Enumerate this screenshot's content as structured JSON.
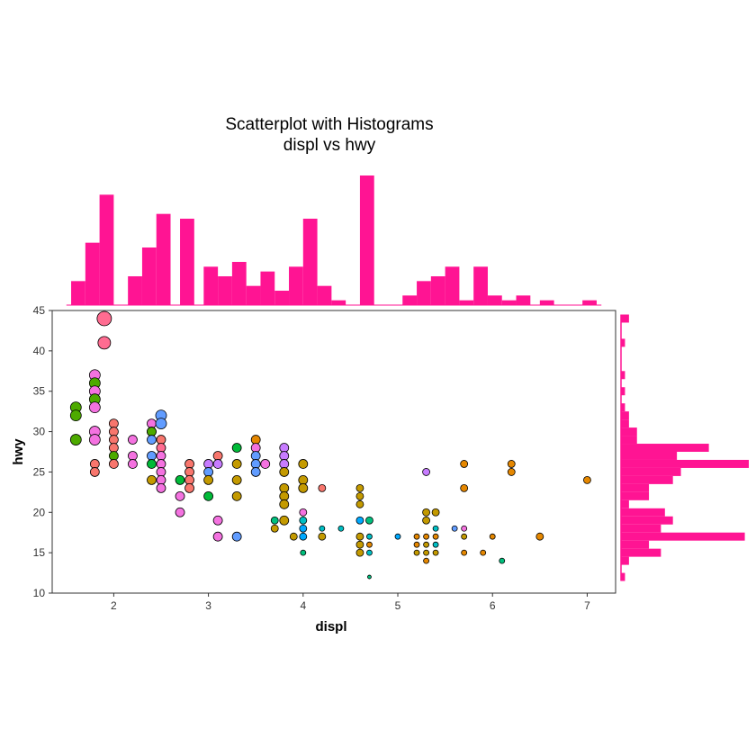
{
  "chart_data": {
    "type": "scatter",
    "title": "Scatterplot with Histograms",
    "subtitle": "displ vs hwy",
    "xlabel": "displ",
    "ylabel": "hwy",
    "xlim": [
      1.35,
      7.3
    ],
    "ylim": [
      10,
      45
    ],
    "xticks": [
      "2",
      "3",
      "4",
      "5",
      "6",
      "7"
    ],
    "yticks": [
      "10",
      "15",
      "20",
      "25",
      "30",
      "35",
      "40",
      "45"
    ],
    "marginal_color": "#FF1493",
    "point_stroke": "#000000",
    "points": [
      {
        "x": 1.6,
        "y": 33,
        "c": "#4DAA00",
        "s": 6
      },
      {
        "x": 1.6,
        "y": 32,
        "c": "#4DAA00",
        "s": 6
      },
      {
        "x": 1.6,
        "y": 29,
        "c": "#4DAA00",
        "s": 6
      },
      {
        "x": 1.8,
        "y": 37,
        "c": "#F472E0",
        "s": 6
      },
      {
        "x": 1.8,
        "y": 36,
        "c": "#4DAA00",
        "s": 6
      },
      {
        "x": 1.8,
        "y": 35,
        "c": "#F472E0",
        "s": 6
      },
      {
        "x": 1.8,
        "y": 34,
        "c": "#4DAA00",
        "s": 6
      },
      {
        "x": 1.8,
        "y": 33,
        "c": "#F472E0",
        "s": 6
      },
      {
        "x": 1.8,
        "y": 30,
        "c": "#F472E0",
        "s": 6
      },
      {
        "x": 1.8,
        "y": 29,
        "c": "#F472E0",
        "s": 6
      },
      {
        "x": 1.8,
        "y": 26,
        "c": "#F8766D",
        "s": 5
      },
      {
        "x": 1.8,
        "y": 25,
        "c": "#F8766D",
        "s": 5
      },
      {
        "x": 1.9,
        "y": 44,
        "c": "#FF6C91",
        "s": 8
      },
      {
        "x": 1.9,
        "y": 41,
        "c": "#FF6C91",
        "s": 7
      },
      {
        "x": 2.0,
        "y": 31,
        "c": "#F8766D",
        "s": 5
      },
      {
        "x": 2.0,
        "y": 30,
        "c": "#F8766D",
        "s": 5
      },
      {
        "x": 2.0,
        "y": 29,
        "c": "#F8766D",
        "s": 5
      },
      {
        "x": 2.0,
        "y": 28,
        "c": "#F8766D",
        "s": 5
      },
      {
        "x": 2.0,
        "y": 27,
        "c": "#4DAA00",
        "s": 5
      },
      {
        "x": 2.0,
        "y": 26,
        "c": "#F8766D",
        "s": 5
      },
      {
        "x": 2.2,
        "y": 29,
        "c": "#F472E0",
        "s": 5
      },
      {
        "x": 2.2,
        "y": 27,
        "c": "#F472E0",
        "s": 5
      },
      {
        "x": 2.2,
        "y": 26,
        "c": "#F472E0",
        "s": 5
      },
      {
        "x": 2.4,
        "y": 31,
        "c": "#F472E0",
        "s": 5
      },
      {
        "x": 2.4,
        "y": 30,
        "c": "#00A9FF",
        "s": 5
      },
      {
        "x": 2.4,
        "y": 30,
        "c": "#4DAA00",
        "s": 5
      },
      {
        "x": 2.4,
        "y": 29,
        "c": "#619CFF",
        "s": 5
      },
      {
        "x": 2.4,
        "y": 27,
        "c": "#619CFF",
        "s": 5
      },
      {
        "x": 2.4,
        "y": 26,
        "c": "#00BA38",
        "s": 5
      },
      {
        "x": 2.4,
        "y": 24,
        "c": "#C49A00",
        "s": 5
      },
      {
        "x": 2.5,
        "y": 32,
        "c": "#619CFF",
        "s": 6
      },
      {
        "x": 2.5,
        "y": 31,
        "c": "#619CFF",
        "s": 6
      },
      {
        "x": 2.5,
        "y": 29,
        "c": "#F8766D",
        "s": 5
      },
      {
        "x": 2.5,
        "y": 28,
        "c": "#FF6C91",
        "s": 5
      },
      {
        "x": 2.5,
        "y": 27,
        "c": "#F472E0",
        "s": 5
      },
      {
        "x": 2.5,
        "y": 26,
        "c": "#F472E0",
        "s": 5
      },
      {
        "x": 2.5,
        "y": 25,
        "c": "#F472E0",
        "s": 5
      },
      {
        "x": 2.5,
        "y": 24,
        "c": "#F472E0",
        "s": 5
      },
      {
        "x": 2.5,
        "y": 23,
        "c": "#F472E0",
        "s": 5
      },
      {
        "x": 2.7,
        "y": 24,
        "c": "#00BA38",
        "s": 5
      },
      {
        "x": 2.7,
        "y": 22,
        "c": "#F472E0",
        "s": 5
      },
      {
        "x": 2.7,
        "y": 20,
        "c": "#F472E0",
        "s": 5
      },
      {
        "x": 2.8,
        "y": 26,
        "c": "#F8766D",
        "s": 5
      },
      {
        "x": 2.8,
        "y": 25,
        "c": "#F8766D",
        "s": 5
      },
      {
        "x": 2.8,
        "y": 24,
        "c": "#F8766D",
        "s": 5
      },
      {
        "x": 2.8,
        "y": 23,
        "c": "#F8766D",
        "s": 5
      },
      {
        "x": 3.0,
        "y": 26,
        "c": "#C77CFF",
        "s": 5
      },
      {
        "x": 3.0,
        "y": 25,
        "c": "#619CFF",
        "s": 5
      },
      {
        "x": 3.0,
        "y": 24,
        "c": "#C49A00",
        "s": 5
      },
      {
        "x": 3.0,
        "y": 22,
        "c": "#00BA38",
        "s": 5
      },
      {
        "x": 3.1,
        "y": 27,
        "c": "#F8766D",
        "s": 5
      },
      {
        "x": 3.1,
        "y": 26,
        "c": "#C77CFF",
        "s": 5
      },
      {
        "x": 3.1,
        "y": 19,
        "c": "#F472E0",
        "s": 5
      },
      {
        "x": 3.1,
        "y": 17,
        "c": "#F472E0",
        "s": 5
      },
      {
        "x": 3.3,
        "y": 28,
        "c": "#00BA38",
        "s": 5
      },
      {
        "x": 3.3,
        "y": 26,
        "c": "#C49A00",
        "s": 5
      },
      {
        "x": 3.3,
        "y": 24,
        "c": "#C49A00",
        "s": 5
      },
      {
        "x": 3.3,
        "y": 22,
        "c": "#C49A00",
        "s": 5
      },
      {
        "x": 3.3,
        "y": 17,
        "c": "#619CFF",
        "s": 5
      },
      {
        "x": 3.5,
        "y": 29,
        "c": "#E58700",
        "s": 5
      },
      {
        "x": 3.5,
        "y": 28,
        "c": "#F472E0",
        "s": 5
      },
      {
        "x": 3.5,
        "y": 27,
        "c": "#619CFF",
        "s": 5
      },
      {
        "x": 3.5,
        "y": 26,
        "c": "#619CFF",
        "s": 5
      },
      {
        "x": 3.5,
        "y": 25,
        "c": "#619CFF",
        "s": 5
      },
      {
        "x": 3.6,
        "y": 26,
        "c": "#F472E0",
        "s": 5
      },
      {
        "x": 3.7,
        "y": 19,
        "c": "#00BF7D",
        "s": 4
      },
      {
        "x": 3.7,
        "y": 18,
        "c": "#C49A00",
        "s": 4
      },
      {
        "x": 3.8,
        "y": 28,
        "c": "#C77CFF",
        "s": 5
      },
      {
        "x": 3.8,
        "y": 27,
        "c": "#C77CFF",
        "s": 5
      },
      {
        "x": 3.8,
        "y": 26,
        "c": "#C77CFF",
        "s": 5
      },
      {
        "x": 3.8,
        "y": 25,
        "c": "#C49A00",
        "s": 5
      },
      {
        "x": 3.8,
        "y": 23,
        "c": "#C49A00",
        "s": 5
      },
      {
        "x": 3.8,
        "y": 22,
        "c": "#C49A00",
        "s": 5
      },
      {
        "x": 3.8,
        "y": 21,
        "c": "#C49A00",
        "s": 5
      },
      {
        "x": 3.8,
        "y": 19,
        "c": "#C49A00",
        "s": 5
      },
      {
        "x": 3.9,
        "y": 17,
        "c": "#C49A00",
        "s": 4
      },
      {
        "x": 4.0,
        "y": 26,
        "c": "#C49A00",
        "s": 5
      },
      {
        "x": 4.0,
        "y": 24,
        "c": "#C49A00",
        "s": 5
      },
      {
        "x": 4.0,
        "y": 23,
        "c": "#C49A00",
        "s": 5
      },
      {
        "x": 4.0,
        "y": 20,
        "c": "#F472E0",
        "s": 4
      },
      {
        "x": 4.0,
        "y": 19,
        "c": "#00BFC4",
        "s": 4
      },
      {
        "x": 4.0,
        "y": 18,
        "c": "#00A9FF",
        "s": 4
      },
      {
        "x": 4.0,
        "y": 17,
        "c": "#00A9FF",
        "s": 4
      },
      {
        "x": 4.0,
        "y": 15,
        "c": "#00BF7D",
        "s": 3
      },
      {
        "x": 4.2,
        "y": 23,
        "c": "#F8766D",
        "s": 4
      },
      {
        "x": 4.2,
        "y": 18,
        "c": "#00BFC4",
        "s": 3
      },
      {
        "x": 4.2,
        "y": 17,
        "c": "#C49A00",
        "s": 4
      },
      {
        "x": 4.4,
        "y": 18,
        "c": "#00BFC4",
        "s": 3
      },
      {
        "x": 4.6,
        "y": 23,
        "c": "#C49A00",
        "s": 4
      },
      {
        "x": 4.6,
        "y": 22,
        "c": "#C49A00",
        "s": 4
      },
      {
        "x": 4.6,
        "y": 21,
        "c": "#C49A00",
        "s": 4
      },
      {
        "x": 4.6,
        "y": 19,
        "c": "#00A9FF",
        "s": 4
      },
      {
        "x": 4.6,
        "y": 17,
        "c": "#C49A00",
        "s": 4
      },
      {
        "x": 4.6,
        "y": 16,
        "c": "#C49A00",
        "s": 4
      },
      {
        "x": 4.6,
        "y": 15,
        "c": "#C49A00",
        "s": 4
      },
      {
        "x": 4.7,
        "y": 19,
        "c": "#00BF7D",
        "s": 4
      },
      {
        "x": 4.7,
        "y": 17,
        "c": "#00BFC4",
        "s": 3
      },
      {
        "x": 4.7,
        "y": 16,
        "c": "#E58700",
        "s": 3
      },
      {
        "x": 4.7,
        "y": 15,
        "c": "#00BFC4",
        "s": 3
      },
      {
        "x": 4.7,
        "y": 12,
        "c": "#00BF7D",
        "s": 2
      },
      {
        "x": 5.0,
        "y": 17,
        "c": "#00A9FF",
        "s": 3
      },
      {
        "x": 5.2,
        "y": 17,
        "c": "#E58700",
        "s": 3
      },
      {
        "x": 5.2,
        "y": 16,
        "c": "#E58700",
        "s": 3
      },
      {
        "x": 5.2,
        "y": 15,
        "c": "#C49A00",
        "s": 3
      },
      {
        "x": 5.3,
        "y": 25,
        "c": "#C77CFF",
        "s": 4
      },
      {
        "x": 5.3,
        "y": 20,
        "c": "#C49A00",
        "s": 4
      },
      {
        "x": 5.3,
        "y": 19,
        "c": "#C49A00",
        "s": 4
      },
      {
        "x": 5.3,
        "y": 17,
        "c": "#E58700",
        "s": 3
      },
      {
        "x": 5.3,
        "y": 16,
        "c": "#C49A00",
        "s": 3
      },
      {
        "x": 5.3,
        "y": 15,
        "c": "#C49A00",
        "s": 3
      },
      {
        "x": 5.3,
        "y": 14,
        "c": "#E58700",
        "s": 3
      },
      {
        "x": 5.4,
        "y": 20,
        "c": "#C49A00",
        "s": 4
      },
      {
        "x": 5.4,
        "y": 18,
        "c": "#00BFC4",
        "s": 3
      },
      {
        "x": 5.4,
        "y": 17,
        "c": "#E58700",
        "s": 3
      },
      {
        "x": 5.4,
        "y": 16,
        "c": "#00BFC4",
        "s": 3
      },
      {
        "x": 5.4,
        "y": 15,
        "c": "#C49A00",
        "s": 3
      },
      {
        "x": 5.6,
        "y": 18,
        "c": "#619CFF",
        "s": 3
      },
      {
        "x": 5.7,
        "y": 26,
        "c": "#E58700",
        "s": 4
      },
      {
        "x": 5.7,
        "y": 23,
        "c": "#E58700",
        "s": 4
      },
      {
        "x": 5.7,
        "y": 18,
        "c": "#F472E0",
        "s": 3
      },
      {
        "x": 5.7,
        "y": 17,
        "c": "#C49A00",
        "s": 3
      },
      {
        "x": 5.7,
        "y": 15,
        "c": "#E58700",
        "s": 3
      },
      {
        "x": 5.9,
        "y": 15,
        "c": "#E58700",
        "s": 3
      },
      {
        "x": 6.0,
        "y": 17,
        "c": "#E58700",
        "s": 3
      },
      {
        "x": 6.1,
        "y": 14,
        "c": "#00BF7D",
        "s": 3
      },
      {
        "x": 6.2,
        "y": 26,
        "c": "#E58700",
        "s": 4
      },
      {
        "x": 6.2,
        "y": 25,
        "c": "#E58700",
        "s": 4
      },
      {
        "x": 6.5,
        "y": 17,
        "c": "#E58700",
        "s": 4
      },
      {
        "x": 7.0,
        "y": 24,
        "c": "#E58700",
        "s": 4
      }
    ],
    "x_histogram": {
      "bins": [
        {
          "x0": 1.55,
          "x1": 1.7,
          "count": 5
        },
        {
          "x0": 1.7,
          "x1": 1.85,
          "count": 13
        },
        {
          "x0": 1.85,
          "x1": 2.0,
          "count": 23
        },
        {
          "x0": 2.15,
          "x1": 2.3,
          "count": 6
        },
        {
          "x0": 2.3,
          "x1": 2.45,
          "count": 12
        },
        {
          "x0": 2.45,
          "x1": 2.6,
          "count": 19
        },
        {
          "x0": 2.7,
          "x1": 2.85,
          "count": 18
        },
        {
          "x0": 2.95,
          "x1": 3.1,
          "count": 8
        },
        {
          "x0": 3.1,
          "x1": 3.25,
          "count": 6
        },
        {
          "x0": 3.25,
          "x1": 3.4,
          "count": 9
        },
        {
          "x0": 3.4,
          "x1": 3.55,
          "count": 4
        },
        {
          "x0": 3.55,
          "x1": 3.7,
          "count": 7
        },
        {
          "x0": 3.7,
          "x1": 3.85,
          "count": 3
        },
        {
          "x0": 3.85,
          "x1": 4.0,
          "count": 8
        },
        {
          "x0": 4.0,
          "x1": 4.15,
          "count": 18
        },
        {
          "x0": 4.15,
          "x1": 4.3,
          "count": 4
        },
        {
          "x0": 4.3,
          "x1": 4.45,
          "count": 1
        },
        {
          "x0": 4.6,
          "x1": 4.75,
          "count": 27
        },
        {
          "x0": 4.75,
          "x1": 4.9,
          "count": 0
        },
        {
          "x0": 4.9,
          "x1": 5.05,
          "count": 0
        },
        {
          "x0": 5.05,
          "x1": 5.2,
          "count": 2
        },
        {
          "x0": 5.2,
          "x1": 5.35,
          "count": 5
        },
        {
          "x0": 5.35,
          "x1": 5.5,
          "count": 6
        },
        {
          "x0": 5.5,
          "x1": 5.65,
          "count": 8
        },
        {
          "x0": 5.65,
          "x1": 5.8,
          "count": 1
        },
        {
          "x0": 5.8,
          "x1": 5.95,
          "count": 8
        },
        {
          "x0": 5.95,
          "x1": 6.1,
          "count": 2
        },
        {
          "x0": 6.1,
          "x1": 6.25,
          "count": 1
        },
        {
          "x0": 6.25,
          "x1": 6.4,
          "count": 2
        },
        {
          "x0": 6.5,
          "x1": 6.65,
          "count": 1
        },
        {
          "x0": 6.65,
          "x1": 6.8,
          "count": 0
        },
        {
          "x0": 6.8,
          "x1": 6.95,
          "count": 0
        },
        {
          "x0": 6.95,
          "x1": 7.1,
          "count": 1
        }
      ]
    },
    "y_histogram": {
      "bins": [
        {
          "y0": 11.5,
          "y1": 12.5,
          "count": 1
        },
        {
          "y0": 13.5,
          "y1": 14.5,
          "count": 2
        },
        {
          "y0": 14.5,
          "y1": 15.5,
          "count": 10
        },
        {
          "y0": 15.5,
          "y1": 16.5,
          "count": 7
        },
        {
          "y0": 16.5,
          "y1": 17.5,
          "count": 31
        },
        {
          "y0": 17.5,
          "y1": 18.5,
          "count": 10
        },
        {
          "y0": 18.5,
          "y1": 19.5,
          "count": 13
        },
        {
          "y0": 19.5,
          "y1": 20.5,
          "count": 11
        },
        {
          "y0": 20.5,
          "y1": 21.5,
          "count": 2
        },
        {
          "y0": 21.5,
          "y1": 22.5,
          "count": 7
        },
        {
          "y0": 22.5,
          "y1": 23.5,
          "count": 7
        },
        {
          "y0": 23.5,
          "y1": 24.5,
          "count": 13
        },
        {
          "y0": 24.5,
          "y1": 25.5,
          "count": 15
        },
        {
          "y0": 25.5,
          "y1": 26.5,
          "count": 32
        },
        {
          "y0": 26.5,
          "y1": 27.5,
          "count": 14
        },
        {
          "y0": 27.5,
          "y1": 28.5,
          "count": 22
        },
        {
          "y0": 28.5,
          "y1": 29.5,
          "count": 4
        },
        {
          "y0": 29.5,
          "y1": 30.5,
          "count": 4
        },
        {
          "y0": 30.5,
          "y1": 31.5,
          "count": 2
        },
        {
          "y0": 31.5,
          "y1": 32.5,
          "count": 2
        },
        {
          "y0": 32.5,
          "y1": 33.5,
          "count": 1
        },
        {
          "y0": 33.5,
          "y1": 34.5,
          "count": 0
        },
        {
          "y0": 34.5,
          "y1": 35.5,
          "count": 1
        },
        {
          "y0": 35.5,
          "y1": 36.5,
          "count": 0
        },
        {
          "y0": 36.5,
          "y1": 37.5,
          "count": 1
        },
        {
          "y0": 37.5,
          "y1": 38.5,
          "count": 0
        },
        {
          "y0": 40.5,
          "y1": 41.5,
          "count": 1
        },
        {
          "y0": 43.5,
          "y1": 44.5,
          "count": 2
        }
      ]
    }
  }
}
